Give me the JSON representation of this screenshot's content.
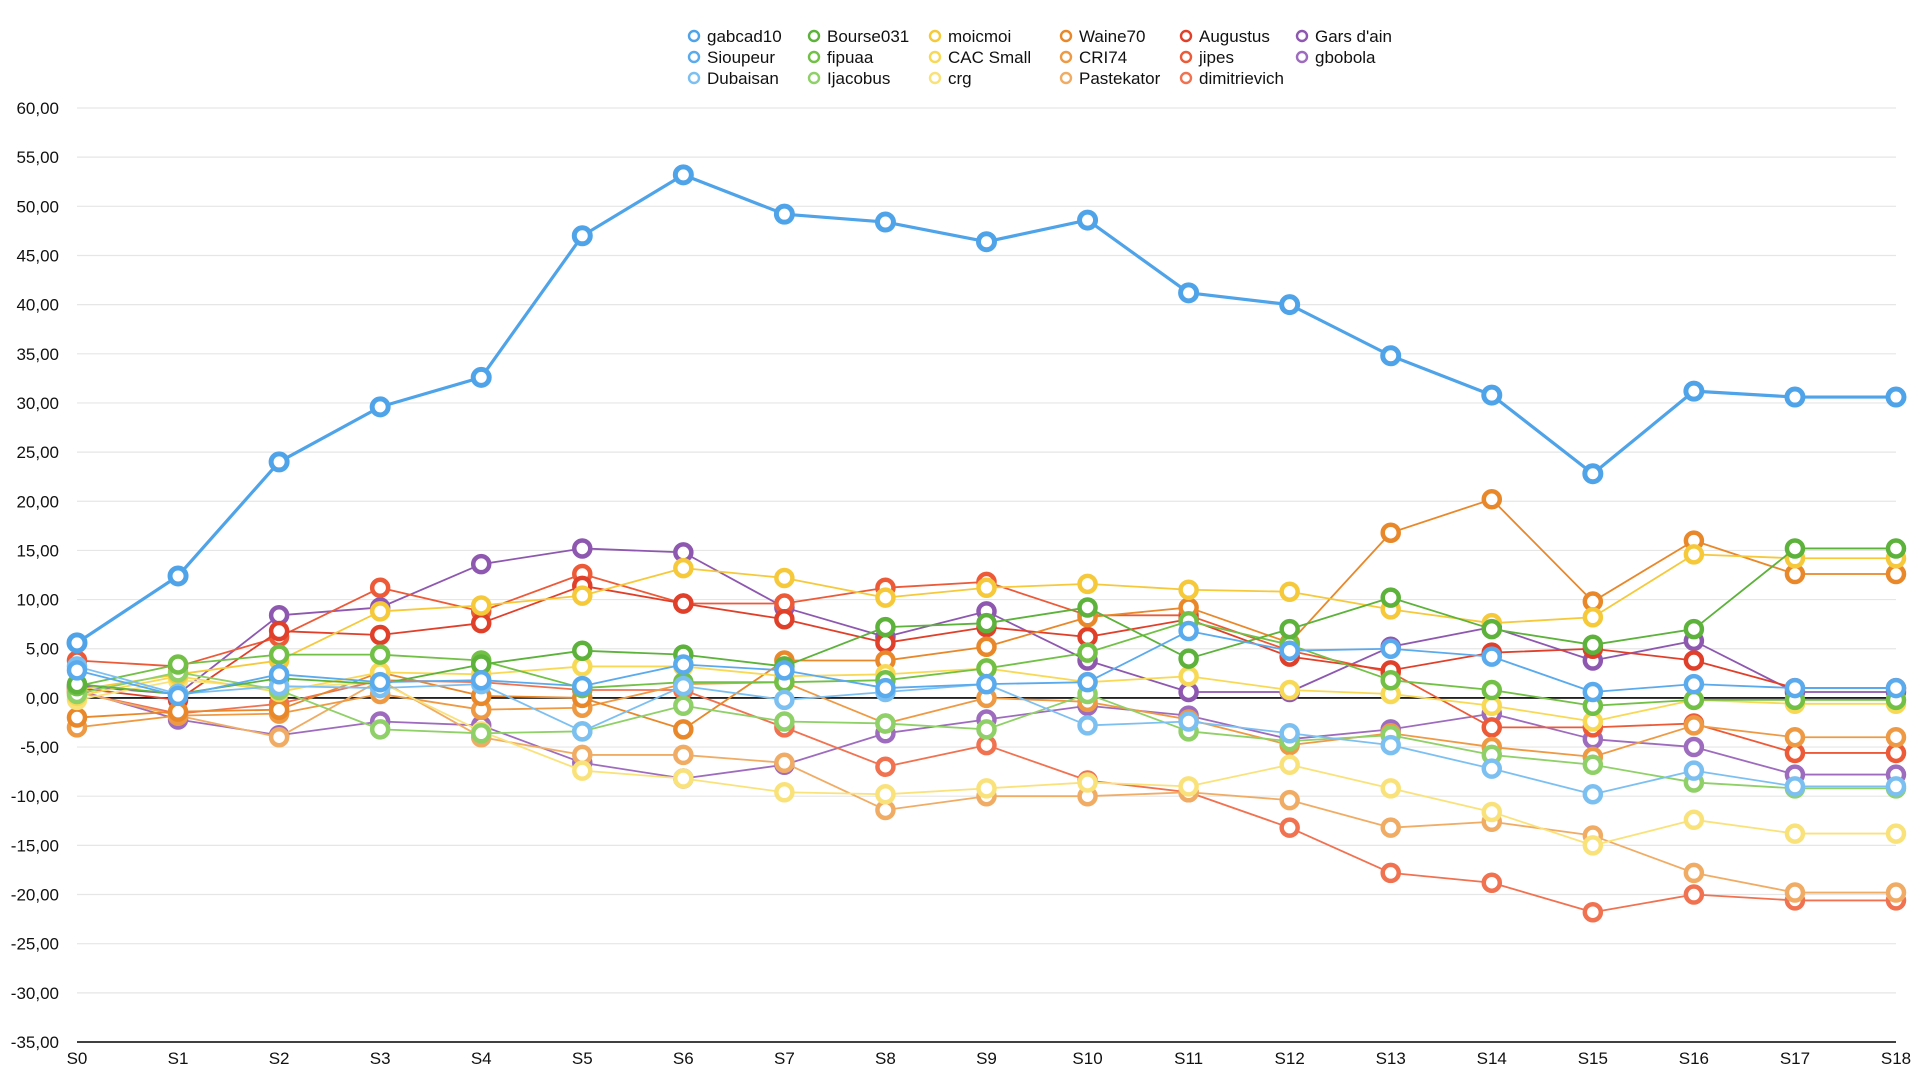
{
  "chart_data": {
    "type": "line",
    "title": "",
    "xlabel": "",
    "ylabel": "",
    "ylim": [
      -35,
      60
    ],
    "yticks": [
      "60,00",
      "55,00",
      "50,00",
      "45,00",
      "40,00",
      "35,00",
      "30,00",
      "25,00",
      "20,00",
      "15,00",
      "10,00",
      "5,00",
      "0,00",
      "-5,00",
      "-10,00",
      "-15,00",
      "-20,00",
      "-25,00",
      "-30,00",
      "-35,00"
    ],
    "grid": true,
    "legend_position": "top-center",
    "categories": [
      "S0",
      "S1",
      "S2",
      "S3",
      "S4",
      "S5",
      "S6",
      "S7",
      "S8",
      "S9",
      "S10",
      "S11",
      "S12",
      "S13",
      "S14",
      "S15",
      "S16",
      "S17",
      "S18"
    ],
    "series": [
      {
        "name": "gabcad10",
        "color": "#4fa3e8",
        "values": [
          5.6,
          12.4,
          24.0,
          29.6,
          32.6,
          47.0,
          53.2,
          49.2,
          48.4,
          46.4,
          48.6,
          41.2,
          40.0,
          34.8,
          30.8,
          22.8,
          31.2,
          30.6,
          30.6
        ]
      },
      {
        "name": "Sioupeur",
        "color": "#5aaaee",
        "values": [
          2.8,
          0.2,
          2.4,
          1.6,
          1.8,
          1.2,
          3.4,
          2.8,
          1.0,
          1.4,
          1.6,
          6.8,
          4.8,
          5.0,
          4.2,
          0.6,
          1.4,
          1.0,
          1.0
        ]
      },
      {
        "name": "Dubaisan",
        "color": "#7cc0f2",
        "values": [
          3.2,
          0.4,
          1.2,
          1.0,
          1.4,
          -3.4,
          1.2,
          -0.2,
          0.6,
          1.4,
          -2.8,
          -2.4,
          -3.6,
          -4.8,
          -7.2,
          -9.8,
          -7.4,
          -9.0,
          -9.0
        ]
      },
      {
        "name": "Bourse031",
        "color": "#5cb23a",
        "values": [
          1.4,
          0.4,
          2.0,
          1.4,
          3.4,
          4.8,
          4.4,
          3.2,
          7.2,
          7.6,
          9.2,
          4.0,
          7.0,
          10.2,
          7.0,
          5.4,
          7.0,
          15.2,
          15.2
        ]
      },
      {
        "name": "fipuaa",
        "color": "#72c046",
        "values": [
          1.2,
          3.4,
          4.4,
          4.4,
          3.8,
          1.0,
          1.6,
          1.6,
          1.8,
          3.0,
          4.6,
          7.8,
          5.4,
          1.8,
          0.8,
          -0.8,
          -0.2,
          -0.2,
          -0.2
        ]
      },
      {
        "name": "Ijacobus",
        "color": "#8fd068",
        "values": [
          0.4,
          2.6,
          0.8,
          -3.2,
          -3.6,
          -3.4,
          -0.8,
          -2.4,
          -2.6,
          -3.2,
          0.4,
          -3.4,
          -4.4,
          -3.8,
          -5.8,
          -6.8,
          -8.6,
          -9.2,
          -9.2
        ]
      },
      {
        "name": "moicmoi",
        "color": "#f5c93a",
        "values": [
          0.8,
          2.4,
          3.8,
          8.8,
          9.4,
          10.4,
          13.2,
          12.2,
          10.2,
          11.2,
          11.6,
          11.0,
          10.8,
          9.0,
          7.6,
          8.2,
          14.6,
          14.2,
          14.2
        ]
      },
      {
        "name": "CAC Small",
        "color": "#f8d955",
        "values": [
          0.2,
          2.2,
          0.6,
          2.6,
          2.4,
          3.2,
          3.2,
          2.2,
          2.4,
          3.0,
          1.6,
          2.2,
          0.8,
          0.4,
          -0.8,
          -2.4,
          -0.2,
          -0.6,
          -0.6
        ]
      },
      {
        "name": "crg",
        "color": "#fae27a",
        "values": [
          -0.2,
          1.8,
          1.0,
          1.6,
          -3.4,
          -7.4,
          -8.2,
          -9.6,
          -9.8,
          -9.2,
          -8.6,
          -9.0,
          -6.8,
          -9.2,
          -11.6,
          -15.0,
          -12.4,
          -13.8,
          -13.8
        ]
      },
      {
        "name": "Waine70",
        "color": "#e8882a",
        "values": [
          -2.0,
          -1.4,
          -1.2,
          2.6,
          0.2,
          0.0,
          -3.2,
          3.8,
          3.8,
          5.2,
          8.2,
          9.2,
          5.6,
          16.8,
          20.2,
          9.8,
          16.0,
          12.6,
          12.6
        ]
      },
      {
        "name": "CRI74",
        "color": "#ee9a44",
        "values": [
          -3.0,
          -1.8,
          -1.6,
          0.4,
          -1.2,
          -1.0,
          1.4,
          1.6,
          -2.6,
          0.0,
          -0.4,
          -2.2,
          -4.8,
          -3.6,
          -5.0,
          -6.0,
          -2.8,
          -4.0,
          -4.0
        ]
      },
      {
        "name": "Pastekator",
        "color": "#f0ac64",
        "values": [
          0.6,
          -1.8,
          -4.0,
          1.8,
          -4.0,
          -5.8,
          -5.8,
          -6.6,
          -11.4,
          -10.0,
          -10.0,
          -9.6,
          -10.4,
          -13.2,
          -12.6,
          -14.0,
          -17.8,
          -19.8,
          -19.8
        ]
      },
      {
        "name": "Augustus",
        "color": "#e0402a",
        "values": [
          1.0,
          -0.2,
          6.8,
          6.4,
          7.6,
          11.4,
          9.6,
          8.0,
          5.6,
          7.2,
          6.2,
          8.0,
          4.2,
          2.8,
          4.6,
          5.0,
          3.8,
          1.0,
          1.0
        ]
      },
      {
        "name": "jipes",
        "color": "#ec5a38",
        "values": [
          3.8,
          3.2,
          6.2,
          11.2,
          8.8,
          12.6,
          9.6,
          9.6,
          11.2,
          11.8,
          8.4,
          8.4,
          4.8,
          2.6,
          -3.0,
          -3.0,
          -2.6,
          -5.6,
          -5.6
        ]
      },
      {
        "name": "dimitrievich",
        "color": "#f07250",
        "values": [
          0.6,
          -1.6,
          -0.6,
          1.8,
          1.6,
          0.8,
          0.8,
          -3.0,
          -7.0,
          -4.8,
          -8.4,
          -9.6,
          -13.2,
          -17.8,
          -18.8,
          -21.8,
          -20.0,
          -20.6,
          -20.6
        ]
      },
      {
        "name": "Gars d'ain",
        "color": "#8e58b0",
        "values": [
          1.2,
          0.4,
          8.4,
          9.2,
          13.6,
          15.2,
          14.8,
          9.2,
          6.2,
          8.8,
          3.8,
          0.6,
          0.6,
          5.2,
          7.2,
          3.8,
          5.8,
          0.6,
          0.6
        ]
      },
      {
        "name": "gbobola",
        "color": "#9e6cbe",
        "values": [
          0.8,
          -2.2,
          -3.8,
          -2.4,
          -2.8,
          -6.6,
          -8.2,
          -6.8,
          -3.6,
          -2.2,
          -0.8,
          -1.8,
          -4.2,
          -3.2,
          -1.6,
          -4.2,
          -5.0,
          -7.8,
          -7.8
        ]
      }
    ]
  }
}
